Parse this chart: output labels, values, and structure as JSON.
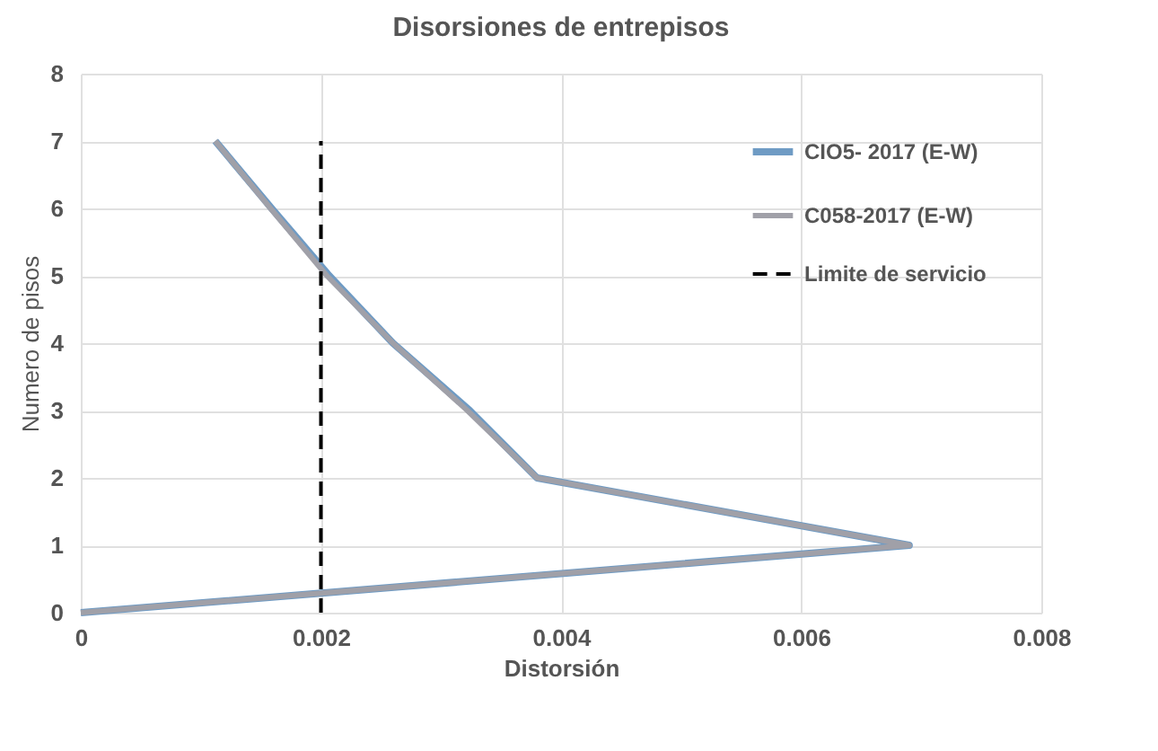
{
  "chart_data": {
    "type": "line",
    "title": "Disorsiones de entrepisos",
    "xlabel": "Distorsión",
    "ylabel": "Numero de pisos",
    "xlim": [
      0,
      0.008
    ],
    "xticks": [
      {
        "value": 0,
        "label": "0"
      },
      0.002,
      0.004,
      0.006,
      0.008
    ],
    "ylim": [
      0,
      8
    ],
    "yticks": [
      0,
      1,
      2,
      3,
      4,
      5,
      6,
      7,
      8
    ],
    "grid": true,
    "legend": "top right",
    "series": [
      {
        "name": "CIO5- 2017 (E-W)",
        "color": "#6f9bc4",
        "x": [
          0,
          0.0069,
          0.0038,
          0.00324,
          0.0026,
          0.00207,
          0.00159,
          0.00112
        ],
        "values": [
          0,
          1,
          2,
          3,
          4,
          5,
          6,
          7
        ],
        "line_style": "solid"
      },
      {
        "name": "C058-2017 (E-W)",
        "color": "#a0a0a8",
        "x": [
          0,
          0.0069,
          0.0038,
          0.00322,
          0.0026,
          0.00205,
          0.00158,
          0.00112
        ],
        "values": [
          0,
          1,
          2,
          3,
          4,
          5,
          6,
          7
        ],
        "line_style": "solid"
      },
      {
        "name": "Limite de servicio",
        "color": "#000000",
        "x": [
          0.002,
          0.002
        ],
        "values": [
          0,
          7
        ],
        "line_style": "dashed"
      }
    ]
  }
}
